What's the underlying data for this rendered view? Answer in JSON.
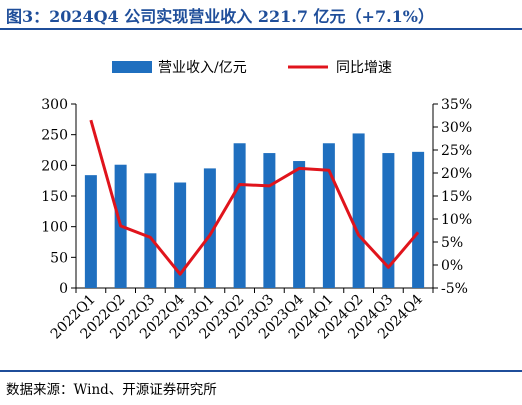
{
  "title": "图3：2024Q4 公司实现营业收入 221.7 亿元（+7.1%）",
  "source": "数据来源：Wind、开源证券研究所",
  "colors": {
    "bar": "#1f6fbf",
    "line": "#e0141c",
    "title": "#1f4e9a"
  },
  "chart_data": {
    "type": "bar",
    "categories": [
      "2022Q1",
      "2022Q2",
      "2022Q3",
      "2022Q4",
      "2023Q1",
      "2023Q2",
      "2023Q3",
      "2023Q4",
      "2024Q1",
      "2024Q2",
      "2024Q3",
      "2024Q4"
    ],
    "series": [
      {
        "name": "营业收入/亿元",
        "type": "bar",
        "axis": "left",
        "values": [
          184,
          201,
          187,
          172,
          195,
          236,
          220,
          207,
          236,
          252,
          220,
          222
        ]
      },
      {
        "name": "同比增速",
        "type": "line",
        "axis": "right",
        "values": [
          31.5,
          8.5,
          6.0,
          -2.0,
          6.5,
          17.5,
          17.2,
          21.0,
          20.6,
          6.5,
          -0.5,
          7.1
        ]
      }
    ],
    "yleft": {
      "ylim": [
        0,
        300
      ],
      "ticks": [
        0,
        50,
        100,
        150,
        200,
        250,
        300
      ]
    },
    "yright": {
      "ylim": [
        -5,
        35
      ],
      "ticks": [
        -5,
        0,
        5,
        10,
        15,
        20,
        25,
        30,
        35
      ],
      "tick_labels": [
        "-5%",
        "0%",
        "5%",
        "10%",
        "15%",
        "20%",
        "25%",
        "30%",
        "35%"
      ]
    },
    "legend": {
      "position": "top-center"
    },
    "grid": false
  }
}
